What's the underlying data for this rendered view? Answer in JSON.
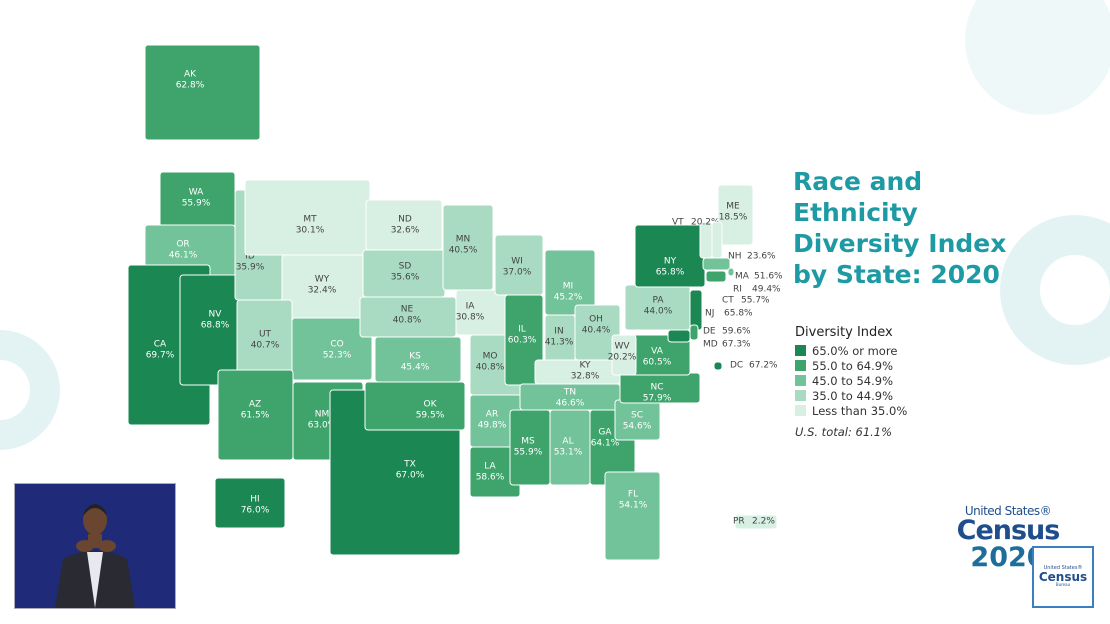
{
  "title": "Race and Ethnicity Diversity Index by State: 2020",
  "legend": {
    "title": "Diversity Index",
    "items": [
      {
        "label": "65.0% or more",
        "color": "#1b8752"
      },
      {
        "label": "55.0 to 64.9%",
        "color": "#3ea46c"
      },
      {
        "label": "45.0 to 54.9%",
        "color": "#72c29a"
      },
      {
        "label": "35.0 to 44.9%",
        "color": "#a9dbc3"
      },
      {
        "label": "Less than 35.0%",
        "color": "#d8efe4"
      }
    ],
    "total": "U.S. total: 61.1%"
  },
  "logo": {
    "line1": "United States®",
    "line2": "Census",
    "line3": "2020"
  },
  "mini_logo": {
    "line1": "United States®",
    "line2": "Census",
    "line3": "Bureau"
  },
  "states": [
    {
      "name": "AK",
      "value": "62.8%",
      "color": "#3ea46c"
    },
    {
      "name": "WA",
      "value": "55.9%",
      "color": "#3ea46c"
    },
    {
      "name": "OR",
      "value": "46.1%",
      "color": "#72c29a"
    },
    {
      "name": "CA",
      "value": "69.7%",
      "color": "#1b8752"
    },
    {
      "name": "NV",
      "value": "68.8%",
      "color": "#1b8752"
    },
    {
      "name": "ID",
      "value": "35.9%",
      "color": "#a9dbc3"
    },
    {
      "name": "MT",
      "value": "30.1%",
      "color": "#d8efe4"
    },
    {
      "name": "WY",
      "value": "32.4%",
      "color": "#d8efe4"
    },
    {
      "name": "UT",
      "value": "40.7%",
      "color": "#a9dbc3"
    },
    {
      "name": "CO",
      "value": "52.3%",
      "color": "#72c29a"
    },
    {
      "name": "AZ",
      "value": "61.5%",
      "color": "#3ea46c"
    },
    {
      "name": "NM",
      "value": "63.0%",
      "color": "#3ea46c"
    },
    {
      "name": "ND",
      "value": "32.6%",
      "color": "#d8efe4"
    },
    {
      "name": "SD",
      "value": "35.6%",
      "color": "#a9dbc3"
    },
    {
      "name": "NE",
      "value": "40.8%",
      "color": "#a9dbc3"
    },
    {
      "name": "KS",
      "value": "45.4%",
      "color": "#72c29a"
    },
    {
      "name": "TX",
      "value": "67.0%",
      "color": "#1b8752"
    },
    {
      "name": "OK",
      "value": "59.5%",
      "color": "#3ea46c"
    },
    {
      "name": "MN",
      "value": "40.5%",
      "color": "#a9dbc3"
    },
    {
      "name": "IA",
      "value": "30.8%",
      "color": "#d8efe4"
    },
    {
      "name": "MO",
      "value": "40.8%",
      "color": "#a9dbc3"
    },
    {
      "name": "AR",
      "value": "49.8%",
      "color": "#72c29a"
    },
    {
      "name": "LA",
      "value": "58.6%",
      "color": "#3ea46c"
    },
    {
      "name": "WI",
      "value": "37.0%",
      "color": "#a9dbc3"
    },
    {
      "name": "IL",
      "value": "60.3%",
      "color": "#3ea46c"
    },
    {
      "name": "MI",
      "value": "45.2%",
      "color": "#72c29a"
    },
    {
      "name": "IN",
      "value": "41.3%",
      "color": "#a9dbc3"
    },
    {
      "name": "OH",
      "value": "40.4%",
      "color": "#a9dbc3"
    },
    {
      "name": "KY",
      "value": "32.8%",
      "color": "#d8efe4"
    },
    {
      "name": "TN",
      "value": "46.6%",
      "color": "#72c29a"
    },
    {
      "name": "MS",
      "value": "55.9%",
      "color": "#3ea46c"
    },
    {
      "name": "AL",
      "value": "53.1%",
      "color": "#72c29a"
    },
    {
      "name": "GA",
      "value": "64.1%",
      "color": "#3ea46c"
    },
    {
      "name": "FL",
      "value": "54.1%",
      "color": "#72c29a"
    },
    {
      "name": "SC",
      "value": "54.6%",
      "color": "#72c29a"
    },
    {
      "name": "NC",
      "value": "57.9%",
      "color": "#3ea46c"
    },
    {
      "name": "VA",
      "value": "60.5%",
      "color": "#3ea46c"
    },
    {
      "name": "WV",
      "value": "20.2%",
      "color": "#d8efe4"
    },
    {
      "name": "PA",
      "value": "44.0%",
      "color": "#a9dbc3"
    },
    {
      "name": "NY",
      "value": "65.8%",
      "color": "#1b8752"
    },
    {
      "name": "ME",
      "value": "18.5%",
      "color": "#d8efe4"
    },
    {
      "name": "VT",
      "value": "20.2%",
      "color": "#d8efe4"
    },
    {
      "name": "NH",
      "value": "23.6%",
      "color": "#d8efe4"
    },
    {
      "name": "MA",
      "value": "51.6%",
      "color": "#72c29a"
    },
    {
      "name": "RI",
      "value": "49.4%",
      "color": "#72c29a"
    },
    {
      "name": "CT",
      "value": "55.7%",
      "color": "#3ea46c"
    },
    {
      "name": "NJ",
      "value": "65.8%",
      "color": "#1b8752"
    },
    {
      "name": "DE",
      "value": "59.6%",
      "color": "#3ea46c"
    },
    {
      "name": "MD",
      "value": "67.3%",
      "color": "#1b8752"
    },
    {
      "name": "DC",
      "value": "67.2%",
      "color": "#1b8752"
    },
    {
      "name": "HI",
      "value": "76.0%",
      "color": "#1b8752"
    },
    {
      "name": "PR",
      "value": "2.2%",
      "color": "#d8efe4"
    }
  ]
}
